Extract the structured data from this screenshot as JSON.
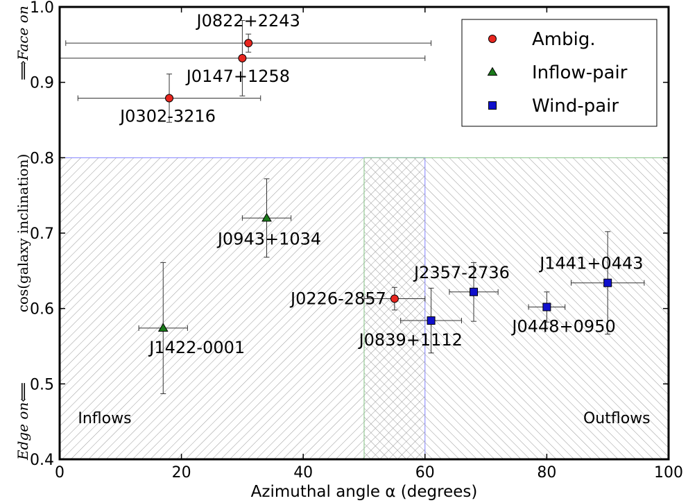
{
  "chart_data": {
    "type": "scatter",
    "xlabel": "Azimuthal angle α (degrees)",
    "ylabel": "cos(galaxy inclination)",
    "ylabel_top": "⟹Face on",
    "ylabel_bottom": "Edge on⟸",
    "xlim": [
      0,
      100
    ],
    "ylim": [
      0.4,
      1.0
    ],
    "x_ticks": [
      "0",
      "20",
      "40",
      "60",
      "80",
      "100"
    ],
    "y_ticks": [
      "0.4",
      "0.5",
      "0.6",
      "0.7",
      "0.8",
      "0.9",
      "1.0"
    ],
    "legend_position": "top-right",
    "regions": [
      {
        "label": "Inflows",
        "x": [
          0,
          60
        ],
        "y": [
          0.4,
          0.8
        ],
        "color": "#8080ff"
      },
      {
        "label": "Outflows",
        "x": [
          50,
          100
        ],
        "y": [
          0.4,
          0.8
        ],
        "color": "#80c080"
      }
    ],
    "series": [
      {
        "name": "Ambig.",
        "marker": "circle",
        "color": "#e8261f",
        "points": [
          {
            "label": "J0822+2243",
            "x": 31,
            "y": 0.952,
            "xerr": [
              30,
              30
            ],
            "yerr": [
              0.012,
              0.012
            ]
          },
          {
            "label": "J0147+1258",
            "x": 30,
            "y": 0.932,
            "xerr": [
              30,
              30
            ],
            "yerr": [
              0.05,
              0.05
            ]
          },
          {
            "label": "J0302-3216",
            "x": 18,
            "y": 0.879,
            "xerr": [
              15,
              15
            ],
            "yerr": [
              0.032,
              0.032
            ]
          },
          {
            "label": "J0226-2857",
            "x": 55,
            "y": 0.613,
            "xerr": [
              5,
              5
            ],
            "yerr": [
              0.015,
              0.015
            ]
          }
        ]
      },
      {
        "name": "Inflow-pair",
        "marker": "triangle",
        "color": "#1a7a1a",
        "points": [
          {
            "label": "J0943+1034",
            "x": 34,
            "y": 0.72,
            "xerr": [
              4,
              4
            ],
            "yerr": [
              0.052,
              0.052
            ]
          },
          {
            "label": "J1422-0001",
            "x": 17,
            "y": 0.574,
            "xerr": [
              4,
              4
            ],
            "yerr": [
              0.087,
              0.087
            ]
          }
        ]
      },
      {
        "name": "Wind-pair",
        "marker": "square",
        "color": "#1010cc",
        "points": [
          {
            "label": "J2357-2736",
            "x": 68,
            "y": 0.622,
            "xerr": [
              4,
              4
            ],
            "yerr": [
              0.039,
              0.039
            ]
          },
          {
            "label": "J0839+1112",
            "x": 61,
            "y": 0.584,
            "xerr": [
              5,
              5
            ],
            "yerr": [
              0.043,
              0.043
            ]
          },
          {
            "label": "J0448+0950",
            "x": 80,
            "y": 0.602,
            "xerr": [
              3,
              3
            ],
            "yerr": [
              0.02,
              0.02
            ]
          },
          {
            "label": "J1441+0443",
            "x": 90,
            "y": 0.634,
            "xerr": [
              6,
              6
            ],
            "yerr": [
              0.068,
              0.068
            ]
          }
        ]
      }
    ]
  }
}
